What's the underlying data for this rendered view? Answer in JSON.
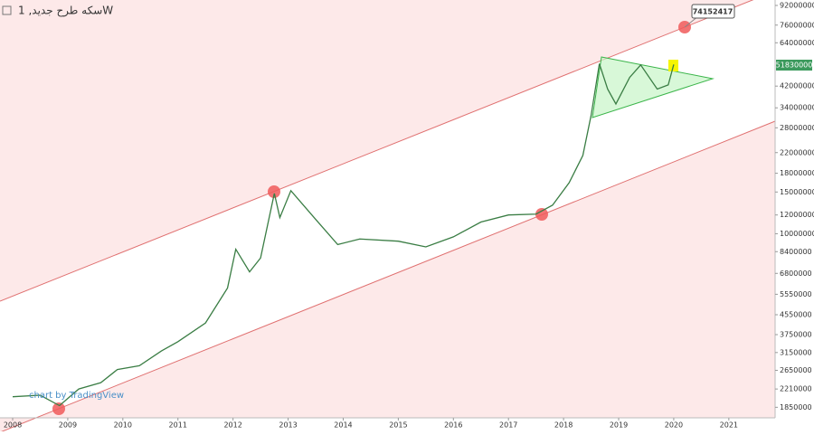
{
  "chart_data": {
    "type": "line",
    "title": "سکه طرح جدید, 1W",
    "watermark": "chart by TradingView",
    "last_price_label": "51830000",
    "annotation": "74152417",
    "log_scale": true,
    "grid": false,
    "x": [
      2008.0,
      2008.5,
      2008.85,
      2009.2,
      2009.6,
      2009.9,
      2010.3,
      2010.7,
      2011.0,
      2011.5,
      2011.9,
      2012.05,
      2012.3,
      2012.5,
      2012.75,
      2012.85,
      2013.05,
      2013.5,
      2013.9,
      2014.3,
      2015.0,
      2015.5,
      2016.0,
      2016.5,
      2017.0,
      2017.5,
      2017.8,
      2018.1,
      2018.35,
      2018.5,
      2018.65,
      2018.8,
      2018.95,
      2019.2,
      2019.4,
      2019.7,
      2019.9,
      2020.0
    ],
    "series": [
      {
        "color": "#3a7d44",
        "values": [
          2050000,
          2080000,
          1880000,
          2210000,
          2350000,
          2670000,
          2770000,
          3200000,
          3500000,
          4200000,
          5900000,
          8600000,
          6900000,
          7900000,
          14800000,
          11700000,
          15200000,
          11500000,
          9000000,
          9500000,
          9300000,
          8800000,
          9700000,
          11200000,
          12000000,
          12100000,
          13200000,
          16400000,
          21400000,
          31600000,
          52200000,
          40800000,
          35300000,
          45700000,
          51600000,
          40800000,
          42500000,
          51830000
        ]
      }
    ],
    "xlim": [
      2007.77,
      2021.84
    ],
    "xticks": [
      2008,
      2009,
      2010,
      2011,
      2012,
      2013,
      2014,
      2015,
      2016,
      2017,
      2018,
      2019,
      2020,
      2021
    ],
    "ylim": [
      1670000,
      97000000
    ],
    "yticks": [
      1850000,
      2210000,
      2650000,
      3150000,
      3750000,
      4550000,
      5550000,
      6800000,
      8400000,
      10000000,
      12000000,
      15000000,
      18000000,
      22000000,
      28000000,
      34000000,
      42000000,
      64000000,
      76000000,
      92000000
    ]
  }
}
